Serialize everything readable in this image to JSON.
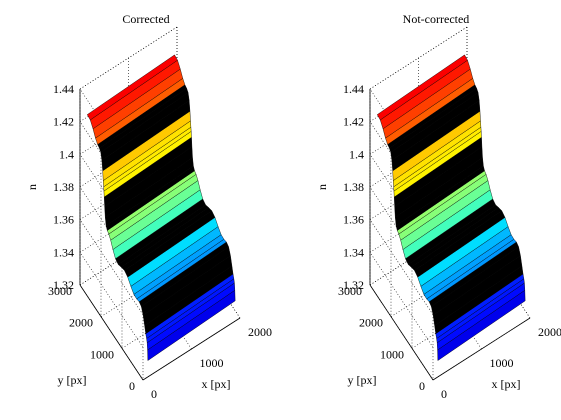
{
  "chart_data": [
    {
      "type": "surface",
      "title": "Corrected",
      "xlabel": "x [px]",
      "ylabel": "y [px]",
      "zlabel": "n",
      "xlim": [
        0,
        2000
      ],
      "ylim": [
        0,
        3000
      ],
      "zlim": [
        1.32,
        1.44
      ],
      "xticks": [
        "0",
        "1000",
        "2000"
      ],
      "yticks": [
        "0",
        "1000",
        "2000",
        "3000"
      ],
      "zticks": [
        "1.32",
        "1.34",
        "1.36",
        "1.38",
        "1.4",
        "1.42",
        "1.44"
      ],
      "grid": true,
      "colormap": "jet",
      "surface_z_profile": [
        1.33,
        1.345,
        1.36,
        1.375,
        1.39,
        1.405,
        1.42
      ]
    },
    {
      "type": "surface",
      "title": "Not-corrected",
      "xlabel": "x [px]",
      "ylabel": "y [px]",
      "zlabel": "n",
      "xlim": [
        0,
        2000
      ],
      "ylim": [
        0,
        3000
      ],
      "zlim": [
        1.32,
        1.44
      ],
      "xticks": [
        "0",
        "1000",
        "2000"
      ],
      "yticks": [
        "0",
        "1000",
        "2000",
        "3000"
      ],
      "zticks": [
        "1.32",
        "1.34",
        "1.36",
        "1.38",
        "1.4",
        "1.42",
        "1.44"
      ],
      "grid": true,
      "colormap": "jet",
      "surface_z_profile": [
        1.33,
        1.345,
        1.36,
        1.375,
        1.39,
        1.405,
        1.42
      ]
    }
  ],
  "colors": {
    "axis": "#000000",
    "grid": "#000000",
    "background": "#ffffff",
    "band_dark": "#000000"
  }
}
